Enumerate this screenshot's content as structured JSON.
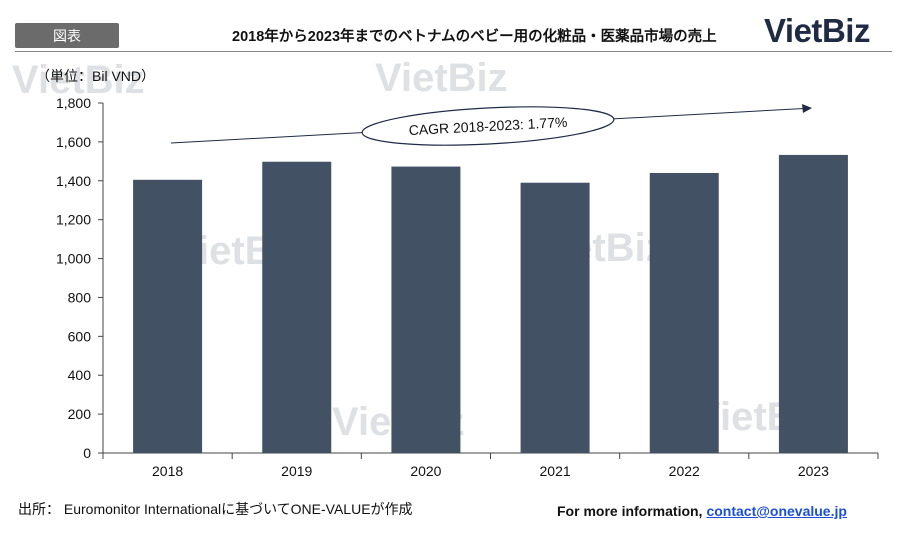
{
  "header": {
    "tag_label": "図表",
    "title": "2018年から2023年までのベトナムのベビー用の化粧品・医薬品市場の売上",
    "logo_viet": "Viet",
    "logo_biz": "Biz"
  },
  "watermark_text": "VietBiz",
  "unit_label": "（単位：Bil VND）",
  "chart_data": {
    "type": "bar",
    "categories": [
      "2018",
      "2019",
      "2020",
      "2021",
      "2022",
      "2023"
    ],
    "values": [
      1405,
      1498,
      1473,
      1390,
      1440,
      1533
    ],
    "ylim": [
      0,
      1800
    ],
    "yticks": [
      0,
      200,
      400,
      600,
      800,
      1000,
      1200,
      1400,
      1600,
      1800
    ],
    "ytick_labels": [
      "0",
      "200",
      "400",
      "600",
      "800",
      "1,000",
      "1,200",
      "1,400",
      "1,600",
      "1,800"
    ],
    "bar_color": "#435165",
    "annotation": "CAGR 2018-2023: 1.77%",
    "grid": false,
    "legend": "none"
  },
  "footer": {
    "source": "出所： Euromonitor Internationalに基づいてONE-VALUEが作成",
    "more_label": "For more information,",
    "contact": "contact@onevalue.jp"
  }
}
